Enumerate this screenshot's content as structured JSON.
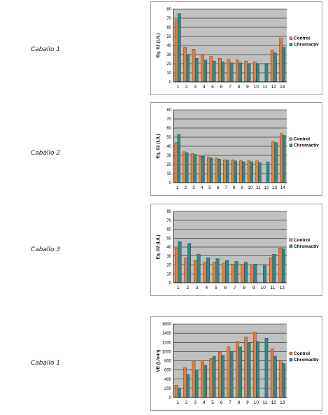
{
  "chart_data": [
    {
      "type": "bar",
      "row_label": "Caballo 1",
      "ylabel": "Eq. 02 (L/L)",
      "ylim": [
        0,
        80
      ],
      "yticks": [
        0,
        10,
        20,
        30,
        40,
        50,
        60,
        70,
        80
      ],
      "categories": [
        "1",
        "2",
        "3",
        "4",
        "5",
        "6",
        "7",
        "8",
        "9",
        "10",
        "11",
        "12",
        "13"
      ],
      "series": [
        {
          "name": "Control",
          "color": "#e87a3a",
          "values": [
            68,
            38,
            36,
            30,
            28,
            26,
            25,
            24,
            23,
            22,
            null,
            35,
            48
          ]
        },
        {
          "name": "Chromactiv",
          "color": "#2a8a8a",
          "values": [
            75,
            30,
            26,
            24,
            23,
            22,
            21,
            21,
            20,
            20,
            20,
            32,
            38
          ]
        }
      ],
      "legend_position": "right"
    },
    {
      "type": "bar",
      "row_label": "Caballo 2",
      "ylabel": "Eq. 02 (L/L)",
      "ylim": [
        0,
        80
      ],
      "yticks": [
        0,
        10,
        20,
        30,
        40,
        50,
        60,
        70,
        80
      ],
      "categories": [
        "1",
        "2",
        "3",
        "4",
        "5",
        "6",
        "7",
        "8",
        "9",
        "10",
        "11",
        "12",
        "13",
        "14"
      ],
      "series": [
        {
          "name": "Control",
          "color": "#e87a3a",
          "values": [
            44,
            34,
            32,
            29,
            28,
            27,
            25,
            25,
            24,
            24,
            24,
            null,
            45,
            54
          ]
        },
        {
          "name": "Chromactiv",
          "color": "#2a8a8a",
          "values": [
            53,
            33,
            31,
            29,
            27,
            26,
            25,
            24,
            23,
            23,
            22,
            23,
            44,
            52
          ]
        }
      ],
      "legend_position": "right"
    },
    {
      "type": "bar",
      "row_label": "Caballo 3",
      "ylabel": "Eq. 02 (L/L)",
      "ylim": [
        0,
        80
      ],
      "yticks": [
        0,
        10,
        20,
        30,
        40,
        50,
        60,
        70,
        80
      ],
      "categories": [
        "1",
        "2",
        "3",
        "4",
        "5",
        "6",
        "7",
        "8",
        "9",
        "10",
        "11",
        "12"
      ],
      "series": [
        {
          "name": "Control",
          "color": "#e87a3a",
          "values": [
            39,
            28,
            25,
            23,
            23,
            22,
            21,
            21,
            20,
            null,
            28,
            39
          ]
        },
        {
          "name": "Chromactiv",
          "color": "#2a8a8a",
          "values": [
            46,
            44,
            32,
            28,
            27,
            25,
            24,
            23,
            21,
            20,
            32,
            38
          ]
        }
      ],
      "legend_position": "right"
    },
    {
      "type": "bar",
      "row_label": "Caballo 1",
      "ylabel": "VE (L/min)",
      "ylim": [
        0,
        1600
      ],
      "yticks": [
        0,
        200,
        400,
        600,
        800,
        1000,
        1200,
        1400,
        1600
      ],
      "categories": [
        "1",
        "2",
        "3",
        "4",
        "5",
        "6",
        "7",
        "8",
        "9",
        "10",
        "11",
        "12",
        "13"
      ],
      "series": [
        {
          "name": "Control",
          "color": "#e87a3a",
          "values": [
            270,
            650,
            780,
            800,
            850,
            990,
            1100,
            1220,
            1320,
            1420,
            null,
            1060,
            800
          ]
        },
        {
          "name": "Chromactiv",
          "color": "#2a8a8a",
          "values": [
            200,
            500,
            600,
            700,
            900,
            920,
            1000,
            1100,
            1200,
            1220,
            1290,
            900,
            740
          ]
        }
      ],
      "legend_position": "right"
    }
  ]
}
